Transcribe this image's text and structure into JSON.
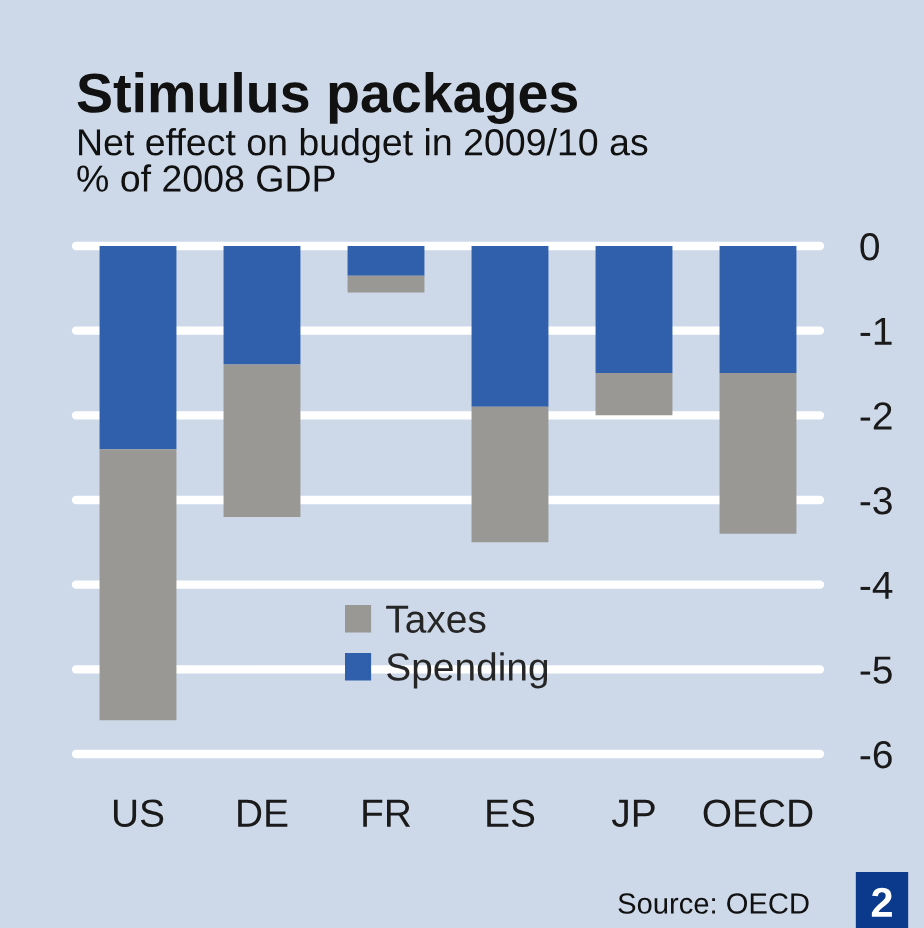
{
  "chart_data": {
    "type": "bar",
    "title": "Stimulus packages",
    "subtitle": "Net effect on budget in 2009/10 as\n% of 2008 GDP",
    "categories": [
      "US",
      "DE",
      "FR",
      "ES",
      "JP",
      "OECD"
    ],
    "stacked": true,
    "series": [
      {
        "name": "Spending",
        "color": "#3060ab",
        "values": [
          -2.4,
          -1.4,
          -0.35,
          -1.9,
          -1.5,
          -1.5
        ]
      },
      {
        "name": "Taxes",
        "color": "#999895",
        "values": [
          -3.2,
          -1.8,
          -0.2,
          -1.6,
          -0.5,
          -1.9
        ]
      }
    ],
    "ylim": [
      -6,
      0
    ],
    "yticks": [
      0,
      -1,
      -2,
      -3,
      -4,
      -5,
      -6
    ],
    "grid": "y",
    "legend": "bottom",
    "annotations": [
      "Source: OECD",
      "2"
    ]
  }
}
